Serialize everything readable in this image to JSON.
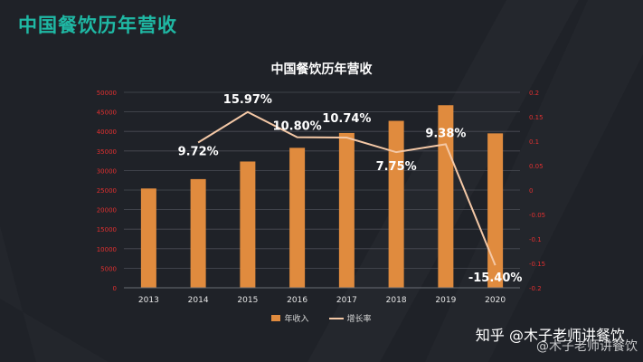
{
  "slide": {
    "title": "中国餐饮历年营收"
  },
  "watermark": {
    "primary": "知乎 @木子老师讲餐饮",
    "secondary": "@木子老师讲餐饮"
  },
  "chart_data": {
    "type": "bar",
    "title": "中国餐饮历年营收",
    "categories": [
      "2013",
      "2014",
      "2015",
      "2016",
      "2017",
      "2018",
      "2019",
      "2020"
    ],
    "series": [
      {
        "name": "年收入",
        "type": "bar",
        "axis": "left",
        "color": "#e08b3e",
        "values": [
          25400,
          27800,
          32300,
          35800,
          39600,
          42700,
          46700,
          39500
        ]
      },
      {
        "name": "增长率",
        "type": "line",
        "axis": "right",
        "color": "#f4c8a6",
        "values": [
          null,
          0.0972,
          0.1597,
          0.108,
          0.1074,
          0.0775,
          0.0938,
          -0.154
        ],
        "labels": [
          "",
          "9.72%",
          "15.97%",
          "10.80%",
          "10.74%",
          "7.75%",
          "9.38%",
          "-15.40%"
        ]
      }
    ],
    "y_left": {
      "min": 0,
      "max": 50000,
      "ticks": [
        "0",
        "5000",
        "10000",
        "15000",
        "20000",
        "25000",
        "30000",
        "35000",
        "40000",
        "45000",
        "50000"
      ]
    },
    "y_right": {
      "min": -0.2,
      "max": 0.2,
      "ticks": [
        "-0.2",
        "-0.15",
        "-0.1",
        "-0.05",
        "0",
        "0.05",
        "0.1",
        "0.15",
        "0.2"
      ]
    },
    "grid": true,
    "legend": "bottom-center",
    "axis_label_color": "#e03030"
  }
}
